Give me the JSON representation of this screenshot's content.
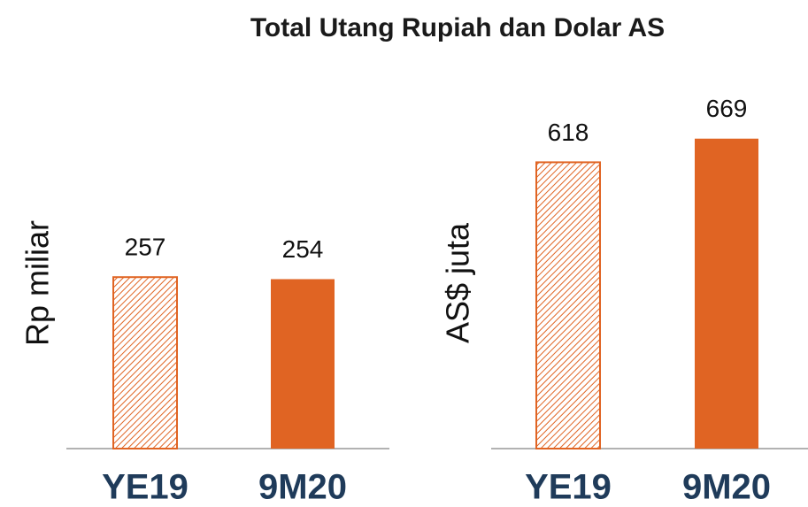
{
  "title": "Total Utang Rupiah dan Dolar AS",
  "chart_data": [
    {
      "type": "bar",
      "y_label": "Rp miliar",
      "categories": [
        "YE19",
        "9M20"
      ],
      "values": [
        257,
        254
      ],
      "color": "#e06423",
      "fill_styles": [
        "hatched",
        "solid"
      ],
      "ylim": [
        0,
        500
      ]
    },
    {
      "type": "bar",
      "y_label": "AS$ juta",
      "categories": [
        "YE19",
        "9M20"
      ],
      "values": [
        618,
        669
      ],
      "color": "#e06423",
      "fill_styles": [
        "hatched",
        "solid"
      ],
      "ylim": [
        0,
        720
      ]
    }
  ]
}
